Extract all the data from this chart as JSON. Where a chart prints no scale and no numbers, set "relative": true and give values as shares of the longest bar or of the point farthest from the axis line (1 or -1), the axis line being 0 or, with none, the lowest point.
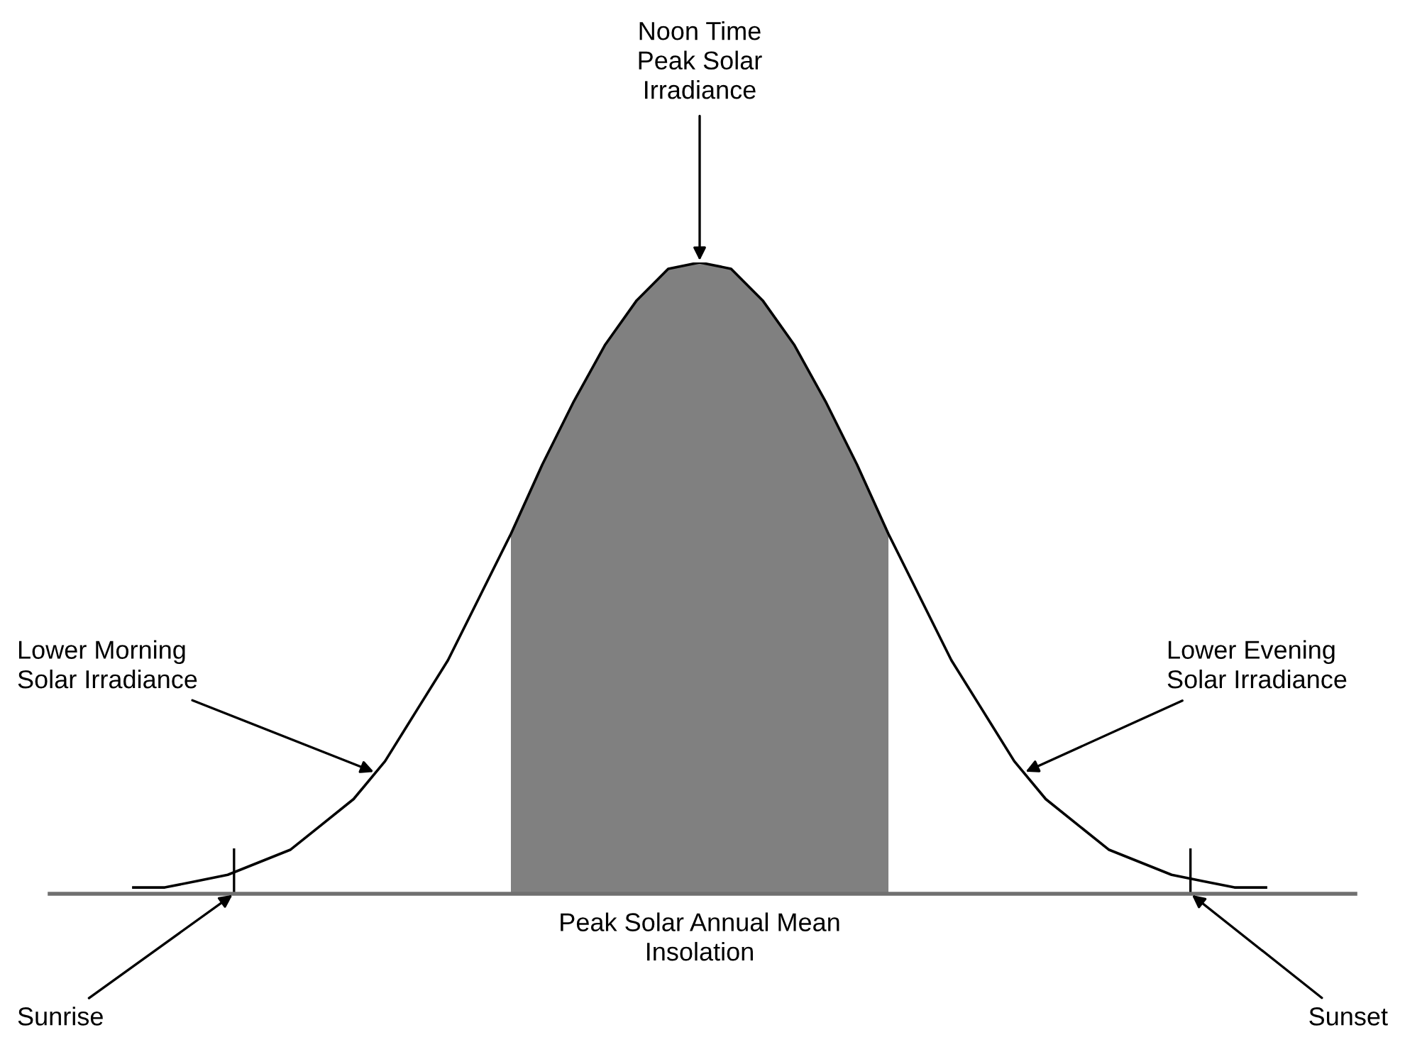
{
  "chart_data": {
    "type": "line",
    "relative": true,
    "categories": [
      null,
      null,
      null,
      null,
      null,
      null,
      null,
      null,
      null,
      null,
      null,
      null,
      null,
      null,
      null,
      null,
      null,
      null,
      null,
      null,
      null,
      null,
      null,
      null,
      null,
      null,
      null,
      null,
      null,
      null,
      null,
      null,
      null,
      null,
      null,
      null,
      null
    ],
    "series": [
      {
        "type": "area",
        "color": "#808080",
        "values": [
          null,
          null,
          null,
          null,
          null,
          null,
          null,
          null,
          null,
          null,
          null,
          null,
          0.57,
          0.68,
          0.78,
          0.87,
          0.94,
          0.99,
          1.0,
          0.99,
          0.94,
          0.87,
          0.78,
          0.68,
          0.57,
          null,
          null,
          null,
          null,
          null,
          null,
          null,
          null,
          null,
          null,
          null,
          null
        ]
      },
      {
        "color": "#000000",
        "values": [
          0.01,
          0.01,
          0.02,
          0.03,
          0.05,
          0.07,
          0.11,
          0.15,
          0.21,
          0.29,
          0.37,
          0.47,
          0.57,
          0.68,
          0.78,
          0.87,
          0.94,
          0.99,
          1.0,
          0.99,
          0.94,
          0.87,
          0.78,
          0.68,
          0.57,
          0.47,
          0.37,
          0.29,
          0.21,
          0.15,
          0.11,
          0.07,
          0.05,
          0.03,
          0.02,
          0.01,
          0.01
        ]
      }
    ],
    "annotations": [
      "Noon Time\nPeak Solar\nIrradiance",
      "Lower Morning\nSolar Irradiance",
      "Lower Evening\nSolar Irradiance",
      "Peak Solar Annual Mean\nInsolation",
      "Sunrise",
      "Sunset"
    ],
    "grid": false
  }
}
